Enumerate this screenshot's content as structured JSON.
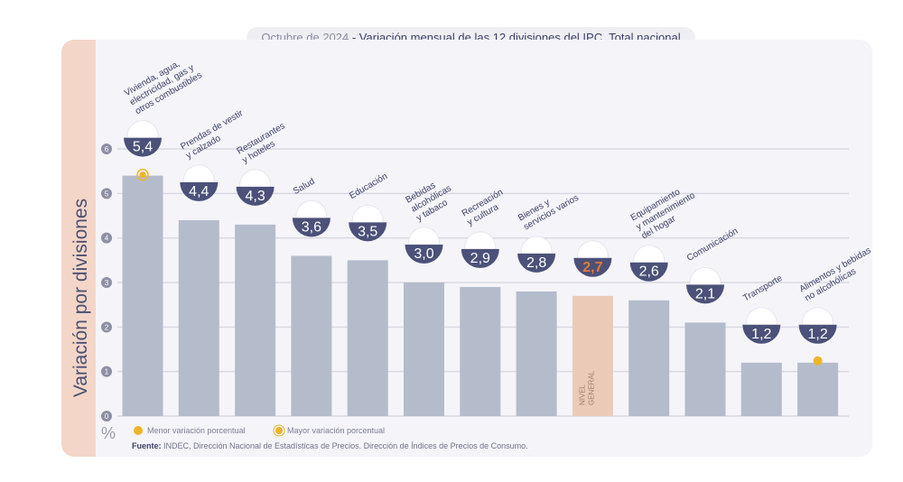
{
  "title": {
    "date": "Octubre de 2024",
    "text": " - Variación mensual de las 12 divisiones del IPC. Total nacional"
  },
  "legend": {
    "min": "Menor variación porcentual",
    "max": "Mayor variación porcentual"
  },
  "source": {
    "label": "Fuente:",
    "text": " INDEC, Dirección Nacional de Estadísticas de Precios. Dirección de Índices de Precios de Consumo."
  },
  "colors": {
    "bar": "#b4bccb",
    "general_bar": "#ebcbb8",
    "badge": "#4b5178",
    "highlight": "#f0b429",
    "general_value": "#e07a3c"
  },
  "chart_data": {
    "type": "bar",
    "ylabel": "Variación por divisiones",
    "yunit": "%",
    "ylim": [
      0,
      6
    ],
    "yticks": [
      0,
      1,
      2,
      3,
      4,
      5,
      6
    ],
    "grid": true,
    "categories": [
      [
        "Vivienda, agua,",
        "electricidad, gas y",
        "otros combustibles"
      ],
      [
        "Prendas de vestir",
        "y calzado"
      ],
      [
        "Restaurantes",
        "y hoteles"
      ],
      [
        "Salud"
      ],
      [
        "Educación"
      ],
      [
        "Bebidas",
        "alcohólicas",
        "y tabaco"
      ],
      [
        "Recreación",
        "y cultura"
      ],
      [
        "Bienes y",
        "servicios varios"
      ],
      [],
      [
        "Equipamiento",
        "y mantenimiento",
        "del hogar"
      ],
      [
        "Comunicación"
      ],
      [
        "Transporte"
      ],
      [
        "Alimentos y bebidas",
        "no alcohólicas"
      ]
    ],
    "values": [
      5.4,
      4.4,
      4.3,
      3.6,
      3.5,
      3.0,
      2.9,
      2.8,
      2.7,
      2.6,
      2.1,
      1.2,
      1.2
    ],
    "value_labels": [
      "5,4",
      "4,4",
      "4,3",
      "3,6",
      "3,5",
      "3,0",
      "2,9",
      "2,8",
      "2,7",
      "2,6",
      "2,1",
      "1,2",
      "1,2"
    ],
    "general_index": 8,
    "general_label": [
      "NIVEL",
      "GENERAL"
    ],
    "max_marker_index": 0,
    "min_marker_index": 12
  }
}
